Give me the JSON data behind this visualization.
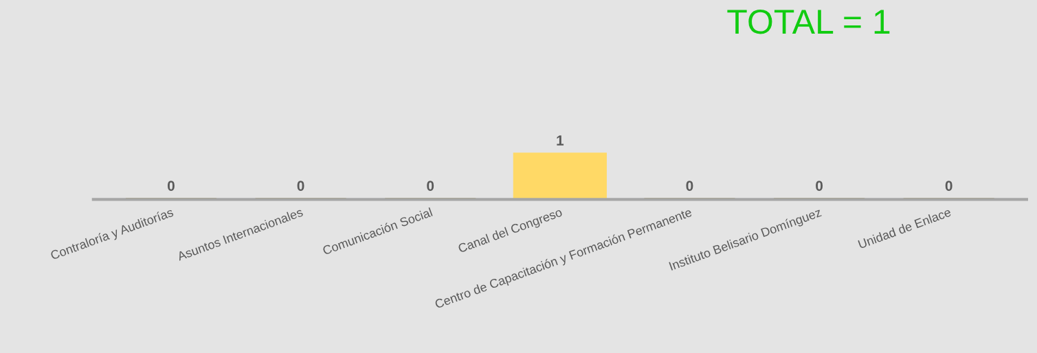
{
  "chart_data": {
    "type": "bar",
    "title": "TOTAL = 1",
    "categories": [
      "Contraloría y Auditorías",
      "Asuntos Internacionales",
      "Comunicación Social",
      "Canal del Congreso",
      "Centro de Capacitación y Formación Permanente",
      "Instituto Belisario Domínguez",
      "Unidad de Enlace"
    ],
    "values": [
      0,
      0,
      0,
      1,
      0,
      0,
      0
    ],
    "colors": [
      "#a08a3c",
      "#a08a3c",
      "#a08a3c",
      "#ffd966",
      "#a08a3c",
      "#a08a3c",
      "#a08a3c"
    ],
    "data_labels": true,
    "grid": false,
    "legend": false
  }
}
